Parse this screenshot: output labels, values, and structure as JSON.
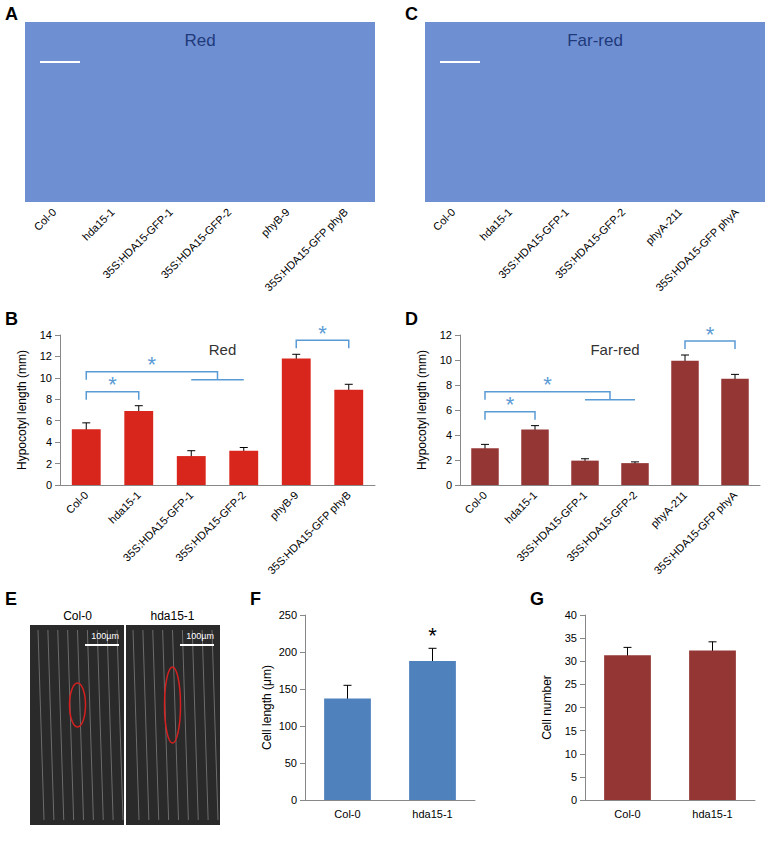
{
  "image_panels": [
    {
      "panel_label": "A",
      "title": "Red",
      "color": "#6f8fd3",
      "labels": [
        "Col-0",
        "hda15-1",
        "35S:HDA15-GFP-1",
        "35S:HDA15-GFP-2",
        "phyB-9",
        "35S:HDA15-GFP phyB"
      ]
    },
    {
      "panel_label": "C",
      "title": "Far-red",
      "color": "#6f8fd3",
      "labels": [
        "Col-0",
        "hda15-1",
        "35S:HDA15-GFP-1",
        "35S:HDA15-GFP-2",
        "phyA-211",
        "35S:HDA15-GFP phyA"
      ]
    },
    {
      "panel_label": "E",
      "color": "#2a2a2a",
      "labels": [
        "Col-0",
        "hda15-1"
      ],
      "scale_label": "100µm"
    }
  ],
  "chart_data": [
    {
      "type": "bar",
      "panel_label": "B",
      "title": "Red",
      "y_label": "Hypocotyl length (mm)",
      "categories": [
        "Col-0",
        "hda15-1",
        "35S:HDA15-GFP-1",
        "35S:HDA15-GFP-2",
        "phyB-9",
        "35S:HDA15-GFP phyB"
      ],
      "values": [
        5.2,
        6.9,
        2.7,
        3.2,
        11.8,
        8.9
      ],
      "errors": [
        0.6,
        0.5,
        0.5,
        0.3,
        0.4,
        0.5
      ],
      "color": "#d9261c",
      "ylim": [
        0,
        14
      ],
      "yticks": [
        0,
        2,
        4,
        6,
        8,
        10,
        12,
        14
      ],
      "annotations": [
        {
          "text": "*",
          "between": [
            "Col-0",
            "hda15-1"
          ],
          "color": "#5b9bd5"
        },
        {
          "text": "*",
          "between": [
            "Col-0",
            "35S:HDA15-GFP-1",
            "35S:HDA15-GFP-2"
          ],
          "color": "#5b9bd5"
        },
        {
          "text": "*",
          "between": [
            "phyB-9",
            "35S:HDA15-GFP phyB"
          ],
          "color": "#5b9bd5"
        }
      ]
    },
    {
      "type": "bar",
      "panel_label": "D",
      "title": "Far-red",
      "y_label": "Hypocotyl length (mm)",
      "categories": [
        "Col-0",
        "hda15-1",
        "35S:HDA15-GFP-1",
        "35S:HDA15-GFP-2",
        "phyA-211",
        "35S:HDA15-GFP phyA"
      ],
      "values": [
        2.95,
        4.45,
        1.95,
        1.75,
        9.95,
        8.5
      ],
      "errors": [
        0.3,
        0.3,
        0.15,
        0.1,
        0.45,
        0.35
      ],
      "color": "#943634",
      "ylim": [
        0,
        12
      ],
      "yticks": [
        0,
        2,
        4,
        6,
        8,
        10,
        12
      ],
      "annotations": [
        {
          "text": "*",
          "between": [
            "Col-0",
            "hda15-1"
          ],
          "color": "#5b9bd5"
        },
        {
          "text": "*",
          "between": [
            "Col-0",
            "35S:HDA15-GFP-1",
            "35S:HDA15-GFP-2"
          ],
          "color": "#5b9bd5"
        },
        {
          "text": "*",
          "between": [
            "phyA-211",
            "35S:HDA15-GFP phyA"
          ],
          "color": "#5b9bd5"
        }
      ]
    },
    {
      "type": "bar",
      "panel_label": "F",
      "y_label": "Cell length (μm)",
      "categories": [
        "Col-0",
        "hda15-1"
      ],
      "values": [
        137,
        188
      ],
      "errors": [
        18,
        17
      ],
      "color": "#4f81bd",
      "ylim": [
        0,
        250
      ],
      "yticks": [
        0,
        50,
        100,
        150,
        200,
        250
      ],
      "annotations": [
        {
          "text": "*",
          "between": [
            "hda15-1"
          ],
          "color": "#000000"
        }
      ]
    },
    {
      "type": "bar",
      "panel_label": "G",
      "y_label": "Cell number",
      "categories": [
        "Col-0",
        "hda15-1"
      ],
      "values": [
        31.3,
        32.3
      ],
      "errors": [
        1.7,
        1.9
      ],
      "color": "#943634",
      "ylim": [
        0,
        40
      ],
      "yticks": [
        0,
        5,
        10,
        15,
        20,
        25,
        30,
        35,
        40
      ]
    }
  ]
}
